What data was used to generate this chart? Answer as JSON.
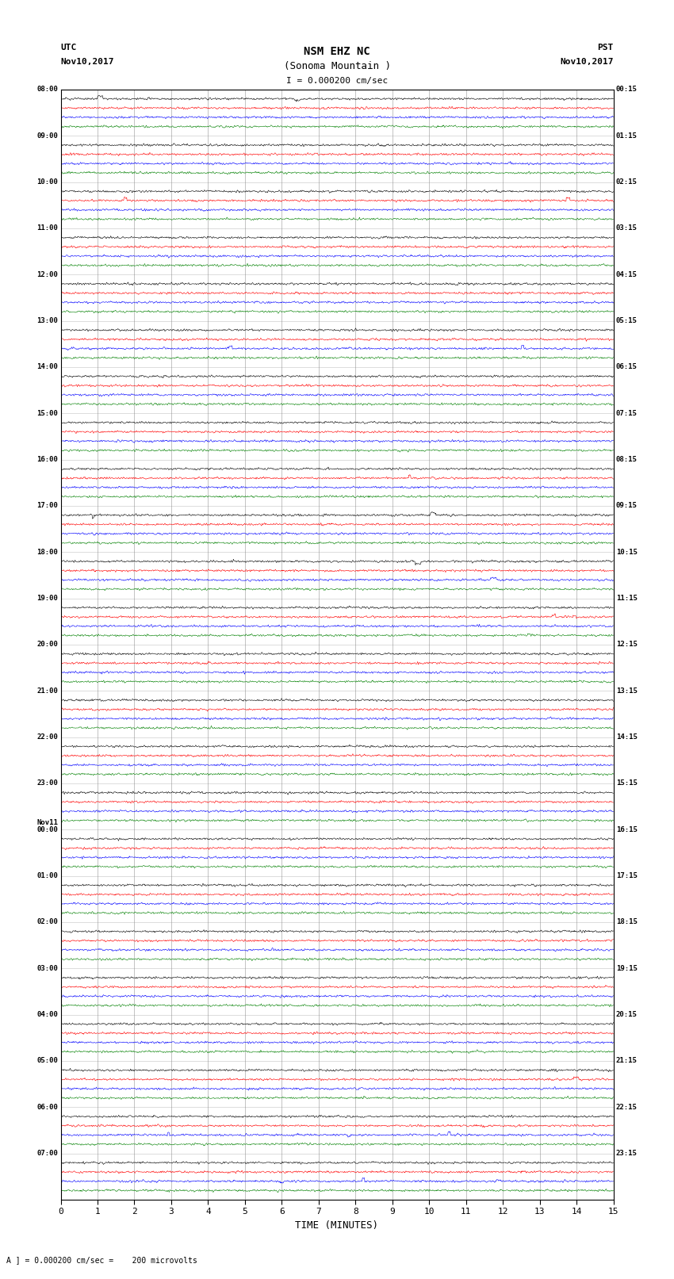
{
  "title_line1": "NSM EHZ NC",
  "title_line2": "(Sonoma Mountain )",
  "title_line3": "I = 0.000200 cm/sec",
  "utc_label": "UTC",
  "utc_date": "Nov10,2017",
  "pst_label": "PST",
  "pst_date": "Nov10,2017",
  "footer_label": "A ] = 0.000200 cm/sec =    200 microvolts",
  "xlabel": "TIME (MINUTES)",
  "bg_color": "#ffffff",
  "line_colors": [
    "black",
    "red",
    "blue",
    "green"
  ],
  "num_rows": 24,
  "minutes_per_row": 15,
  "noise_amplitude": 0.018,
  "grid_color": "#888888",
  "grid_linewidth": 0.5,
  "trace_linewidth": 0.4,
  "left_labels": [
    "08:00",
    "09:00",
    "10:00",
    "11:00",
    "12:00",
    "13:00",
    "14:00",
    "15:00",
    "16:00",
    "17:00",
    "18:00",
    "19:00",
    "20:00",
    "21:00",
    "22:00",
    "23:00",
    "Nov11\n00:00",
    "01:00",
    "02:00",
    "03:00",
    "04:00",
    "05:00",
    "06:00",
    "07:00"
  ],
  "right_labels": [
    "00:15",
    "01:15",
    "02:15",
    "03:15",
    "04:15",
    "05:15",
    "06:15",
    "07:15",
    "08:15",
    "09:15",
    "10:15",
    "11:15",
    "12:15",
    "13:15",
    "14:15",
    "15:15",
    "16:15",
    "17:15",
    "18:15",
    "19:15",
    "20:15",
    "21:15",
    "22:15",
    "23:15"
  ]
}
